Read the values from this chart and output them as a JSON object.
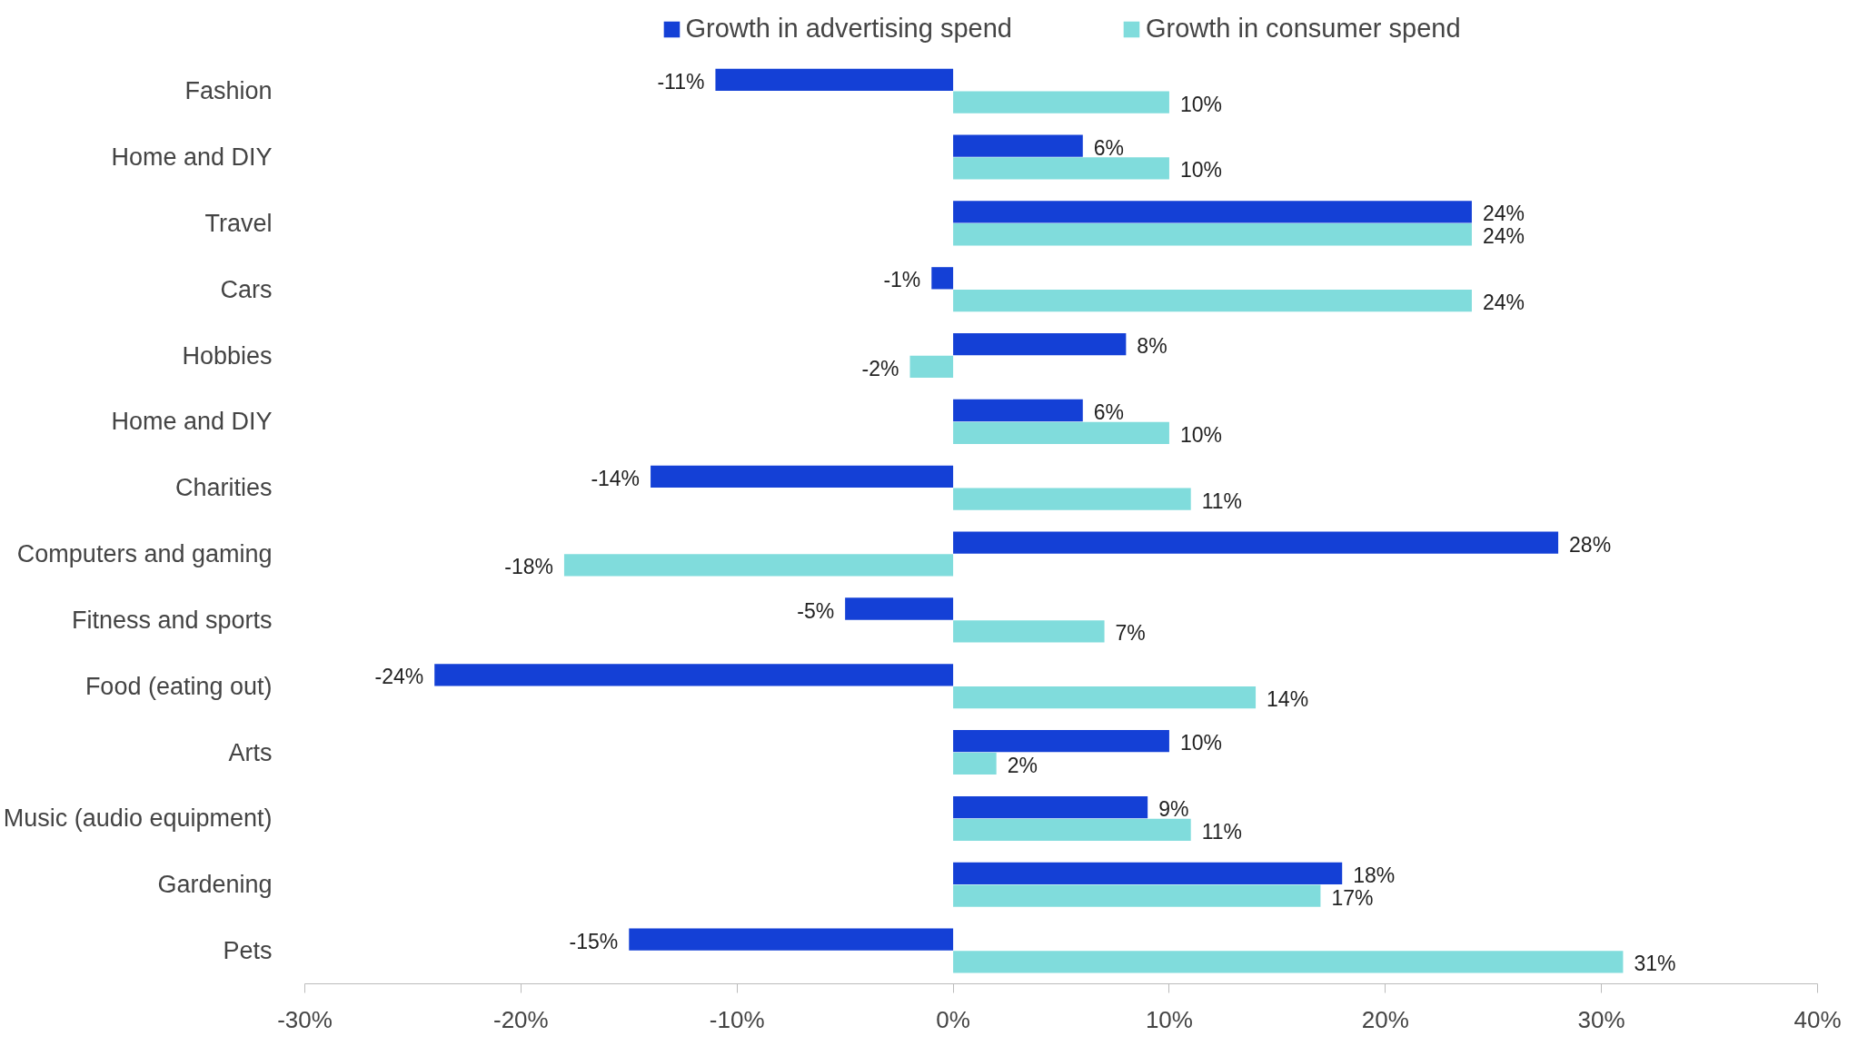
{
  "chart_data": {
    "type": "bar",
    "orientation": "horizontal",
    "categories": [
      "Fashion",
      "Home and DIY",
      "Travel",
      "Cars",
      "Hobbies",
      "Home and DIY",
      "Charities",
      "Computers and gaming",
      "Fitness and sports",
      "Food (eating out)",
      "Arts",
      "Music (audio equipment)",
      "Gardening",
      "Pets"
    ],
    "series": [
      {
        "name": "Growth in advertising spend",
        "color": "#1440d6",
        "values": [
          -11,
          6,
          24,
          -1,
          8,
          6,
          -14,
          28,
          -5,
          -24,
          10,
          9,
          18,
          -15
        ],
        "value_labels": [
          "-11%",
          "6%",
          "24%",
          "-1%",
          "8%",
          "6%",
          "-14%",
          "28%",
          "-5%",
          "-24%",
          "10%",
          "9%",
          "18%",
          "-15%"
        ]
      },
      {
        "name": "Growth in consumer spend",
        "color": "#80dcdc",
        "values": [
          10,
          10,
          24,
          24,
          -2,
          10,
          11,
          -18,
          7,
          14,
          2,
          11,
          17,
          31
        ],
        "value_labels": [
          "10%",
          "10%",
          "24%",
          "24%",
          "-2%",
          "10%",
          "11%",
          "-18%",
          "7%",
          "14%",
          "2%",
          "11%",
          "17%",
          "31%"
        ]
      }
    ],
    "xlim": [
      -30,
      40
    ],
    "xticks": [
      {
        "value": -30,
        "label": "-30%"
      },
      {
        "value": -20,
        "label": "-20%"
      },
      {
        "value": -10,
        "label": "-10%"
      },
      {
        "value": 0,
        "label": "0%"
      },
      {
        "value": 10,
        "label": "10%"
      },
      {
        "value": 20,
        "label": "20%"
      },
      {
        "value": 30,
        "label": "30%"
      },
      {
        "value": 40,
        "label": "40%"
      }
    ],
    "grid": false,
    "legend": "top"
  }
}
